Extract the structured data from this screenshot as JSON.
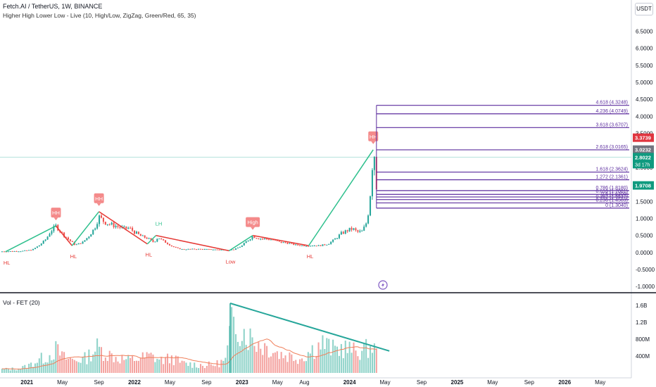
{
  "header": {
    "symbol_line": "Fetch.AI / TetherUS, 1W, BINANCE",
    "indicator_line": "Higher High Lower Low - Live (10, High/Low, ZigZag, Green/Red, 65, 35)",
    "volume_label": "Vol - FET (20)",
    "currency": "USDT"
  },
  "colors": {
    "up": "#26a69a",
    "down": "#ef5350",
    "zigzag_up": "#2ec08d",
    "zigzag_down": "#e53935",
    "fib": "#5b2c9e",
    "hh_label": "#f48a8a",
    "volume_ma": "#f07f5a",
    "trendline": "#26a69a",
    "last_price": "#0f9a7f",
    "red_tag": "#e0353f",
    "gray_tag": "#737580",
    "flash": "#7e57c2"
  },
  "chart_data": [
    {
      "type": "candlestick",
      "title": "Fetch.AI / TetherUS, 1W, BINANCE",
      "y_ticks": [
        "6.5000",
        "6.0000",
        "5.5000",
        "5.0000",
        "4.5000",
        "4.0000",
        "3.5000",
        "3.0000",
        "2.5000",
        "2.0000",
        "1.5000",
        "1.0000",
        "0.5000",
        "0.0000",
        "-0.5000",
        "-1.0000"
      ],
      "ylim": [
        -1.1,
        6.8
      ],
      "x_ticks": [
        "2021",
        "May",
        "Sep",
        "2022",
        "May",
        "Sep",
        "2023",
        "May",
        "Aug",
        "2024",
        "May",
        "Sep",
        "2025",
        "May",
        "Sep",
        "2026",
        "May"
      ],
      "price_path": [
        [
          2020.75,
          0.03
        ],
        [
          2020.95,
          0.04
        ],
        [
          2021.05,
          0.08
        ],
        [
          2021.12,
          0.22
        ],
        [
          2021.18,
          0.4
        ],
        [
          2021.22,
          0.62
        ],
        [
          2021.27,
          0.78
        ],
        [
          2021.33,
          0.55
        ],
        [
          2021.38,
          0.4
        ],
        [
          2021.45,
          0.22
        ],
        [
          2021.52,
          0.3
        ],
        [
          2021.58,
          0.5
        ],
        [
          2021.63,
          0.72
        ],
        [
          2021.67,
          1.05
        ],
        [
          2021.72,
          0.9
        ],
        [
          2021.78,
          0.82
        ],
        [
          2021.83,
          0.78
        ],
        [
          2021.9,
          0.7
        ],
        [
          2021.95,
          0.72
        ],
        [
          2022.0,
          0.6
        ],
        [
          2022.06,
          0.48
        ],
        [
          2022.12,
          0.42
        ],
        [
          2022.18,
          0.3
        ],
        [
          2022.22,
          0.45
        ],
        [
          2022.26,
          0.35
        ],
        [
          2022.3,
          0.28
        ],
        [
          2022.35,
          0.18
        ],
        [
          2022.4,
          0.12
        ],
        [
          2022.45,
          0.09
        ],
        [
          2022.52,
          0.1
        ],
        [
          2022.6,
          0.1
        ],
        [
          2022.7,
          0.09
        ],
        [
          2022.8,
          0.08
        ],
        [
          2022.88,
          0.08
        ],
        [
          2022.93,
          0.09
        ],
        [
          2023.0,
          0.2
        ],
        [
          2023.05,
          0.35
        ],
        [
          2023.1,
          0.48
        ],
        [
          2023.15,
          0.42
        ],
        [
          2023.2,
          0.4
        ],
        [
          2023.28,
          0.38
        ],
        [
          2023.35,
          0.3
        ],
        [
          2023.42,
          0.28
        ],
        [
          2023.5,
          0.22
        ],
        [
          2023.58,
          0.2
        ],
        [
          2023.65,
          0.21
        ],
        [
          2023.72,
          0.2
        ],
        [
          2023.8,
          0.25
        ],
        [
          2023.86,
          0.38
        ],
        [
          2023.92,
          0.55
        ],
        [
          2023.98,
          0.65
        ],
        [
          2024.03,
          0.7
        ],
        [
          2024.07,
          0.6
        ],
        [
          2024.12,
          0.62
        ],
        [
          2024.16,
          0.9
        ],
        [
          2024.18,
          1.3
        ],
        [
          2024.2,
          2.0
        ],
        [
          2024.22,
          3.0
        ],
        [
          2024.24,
          2.8
        ],
        [
          2024.25,
          1.97
        ]
      ],
      "zigzag": [
        [
          2020.8,
          0.02,
          "HL"
        ],
        [
          2021.27,
          0.78,
          "HH"
        ],
        [
          2021.42,
          0.2,
          "HL"
        ],
        [
          2021.67,
          1.2,
          "HH"
        ],
        [
          2022.12,
          0.25,
          "HL"
        ],
        [
          2022.2,
          0.5,
          "LH"
        ],
        [
          2022.88,
          0.05,
          "Low"
        ],
        [
          2023.1,
          0.5,
          "High"
        ],
        [
          2023.62,
          0.2,
          "HL"
        ],
        [
          2024.22,
          3.02,
          "HH"
        ]
      ],
      "fib_levels": [
        {
          "label": "4.618 (4.3248)",
          "value": 4.3248
        },
        {
          "label": "4.236 (4.0749)",
          "value": 4.0749
        },
        {
          "label": "3.618 (3.6707)",
          "value": 3.6707
        },
        {
          "label": "2.618 (3.0165)",
          "value": 3.0165
        },
        {
          "label": "1.618 (2.3624)",
          "value": 2.3624
        },
        {
          "label": "1.272 (2.1361)",
          "value": 2.1361
        },
        {
          "label": "0.786 (1.8180)",
          "value": 1.818
        },
        {
          "label": "0.618 (1.7081)",
          "value": 1.7081
        },
        {
          "label": "0.5 (1.6309)",
          "value": 1.6309
        },
        {
          "label": "0.382 (1.5537)",
          "value": 1.5537
        },
        {
          "label": "0.236 (1.4583)",
          "value": 1.4583
        },
        {
          "label": "0 (1.3040)",
          "value": 1.304
        }
      ],
      "price_tags": [
        {
          "label": "3.3739",
          "value": 3.3739,
          "kind": "red"
        },
        {
          "label": "3.0232",
          "value": 3.0232,
          "kind": "gray"
        },
        {
          "label": "2.8022",
          "sub": "3d 17h",
          "value": 2.8022,
          "kind": "green"
        },
        {
          "label": "1.9708",
          "value": 1.9708,
          "kind": "green"
        }
      ],
      "series": [
        {
          "name": "Fetch.AI / TetherUS",
          "values": []
        }
      ]
    },
    {
      "type": "bar",
      "title": "Vol - FET (20)",
      "y_ticks": [
        "1.6B",
        "1.2B",
        "800M",
        "400M"
      ],
      "ylim": [
        0,
        1.8
      ],
      "volume_profile": [
        [
          2020.75,
          0.08
        ],
        [
          2020.9,
          0.1
        ],
        [
          2021.0,
          0.15
        ],
        [
          2021.1,
          0.3
        ],
        [
          2021.2,
          0.4
        ],
        [
          2021.27,
          0.55
        ],
        [
          2021.35,
          0.35
        ],
        [
          2021.45,
          0.3
        ],
        [
          2021.55,
          0.35
        ],
        [
          2021.65,
          0.6
        ],
        [
          2021.75,
          0.45
        ],
        [
          2021.85,
          0.35
        ],
        [
          2021.95,
          0.3
        ],
        [
          2022.05,
          0.35
        ],
        [
          2022.15,
          0.4
        ],
        [
          2022.25,
          0.3
        ],
        [
          2022.35,
          0.35
        ],
        [
          2022.45,
          0.22
        ],
        [
          2022.55,
          0.2
        ],
        [
          2022.65,
          0.18
        ],
        [
          2022.75,
          0.2
        ],
        [
          2022.85,
          0.3
        ],
        [
          2022.9,
          1.1
        ],
        [
          2022.95,
          1.2
        ],
        [
          2023.05,
          0.9
        ],
        [
          2023.15,
          0.7
        ],
        [
          2023.25,
          0.6
        ],
        [
          2023.35,
          0.45
        ],
        [
          2023.45,
          0.4
        ],
        [
          2023.55,
          0.35
        ],
        [
          2023.65,
          0.55
        ],
        [
          2023.75,
          0.7
        ],
        [
          2023.85,
          0.55
        ],
        [
          2023.95,
          0.6
        ],
        [
          2024.05,
          0.5
        ],
        [
          2024.15,
          0.55
        ],
        [
          2024.22,
          0.65
        ],
        [
          2024.25,
          0.45
        ]
      ],
      "trendline": [
        [
          2022.89,
          1.65
        ],
        [
          2024.37,
          0.52
        ]
      ]
    }
  ]
}
